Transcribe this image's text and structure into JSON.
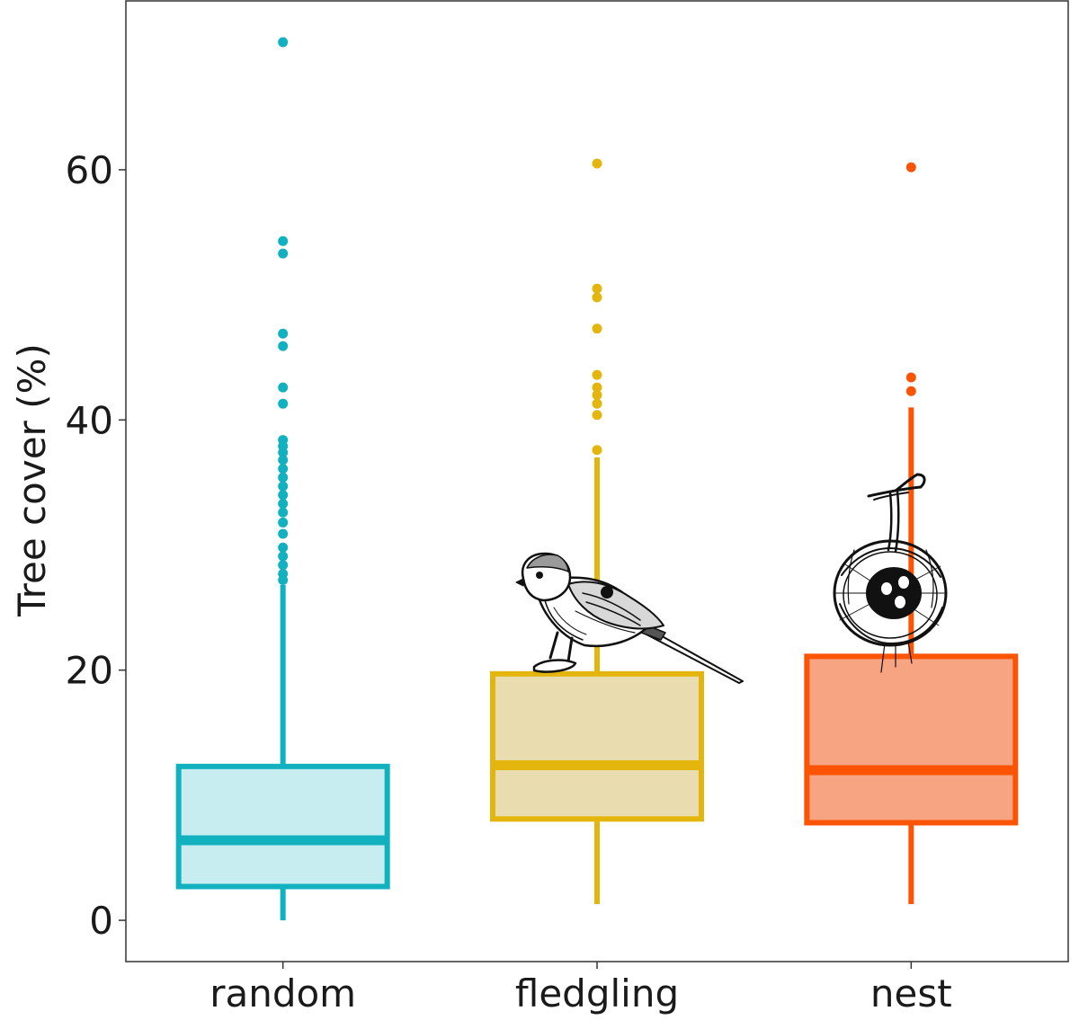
{
  "chart_data": {
    "type": "boxplot",
    "title": "",
    "xlabel": "",
    "ylabel": "Tree cover (%)",
    "ylim": [
      -3.3,
      73.5
    ],
    "y_ticks": [
      0,
      20,
      40,
      60
    ],
    "y_tick_labels": [
      "0",
      "20",
      "40",
      "60"
    ],
    "grid": false,
    "legend": "none",
    "categories": [
      "random",
      "fledgling",
      "nest"
    ],
    "series": [
      {
        "category": "random",
        "color": "#12b1c0",
        "fill": "#c8edf0",
        "whisker_low": 0.0,
        "q1": 2.7,
        "median": 6.4,
        "q3": 12.3,
        "whisker_high": 26.8,
        "outliers": [
          70.2,
          54.3,
          53.3,
          46.9,
          45.9,
          42.6,
          41.3,
          38.4,
          37.9,
          37.4,
          36.8,
          36.1,
          35.4,
          34.7,
          34.0,
          33.3,
          32.6,
          31.8,
          30.9,
          29.8,
          29.1,
          28.4,
          27.7,
          27.2
        ]
      },
      {
        "category": "fledgling",
        "color": "#e4b60d",
        "fill": "#e9ddb0",
        "whisker_low": 1.3,
        "q1": 8.1,
        "median": 12.4,
        "q3": 19.7,
        "whisker_high": 37.0,
        "outliers": [
          60.5,
          50.5,
          49.8,
          47.3,
          43.6,
          42.6,
          42.0,
          41.3,
          40.4,
          37.6
        ]
      },
      {
        "category": "nest",
        "color": "#fb5404",
        "fill": "#f6a481",
        "whisker_low": 1.3,
        "q1": 7.8,
        "median": 12.0,
        "q3": 21.1,
        "whisker_high": 41.0,
        "outliers": [
          60.2,
          43.4,
          42.3
        ]
      }
    ],
    "illustrations": [
      "bird-illustration",
      "nest-illustration"
    ]
  }
}
